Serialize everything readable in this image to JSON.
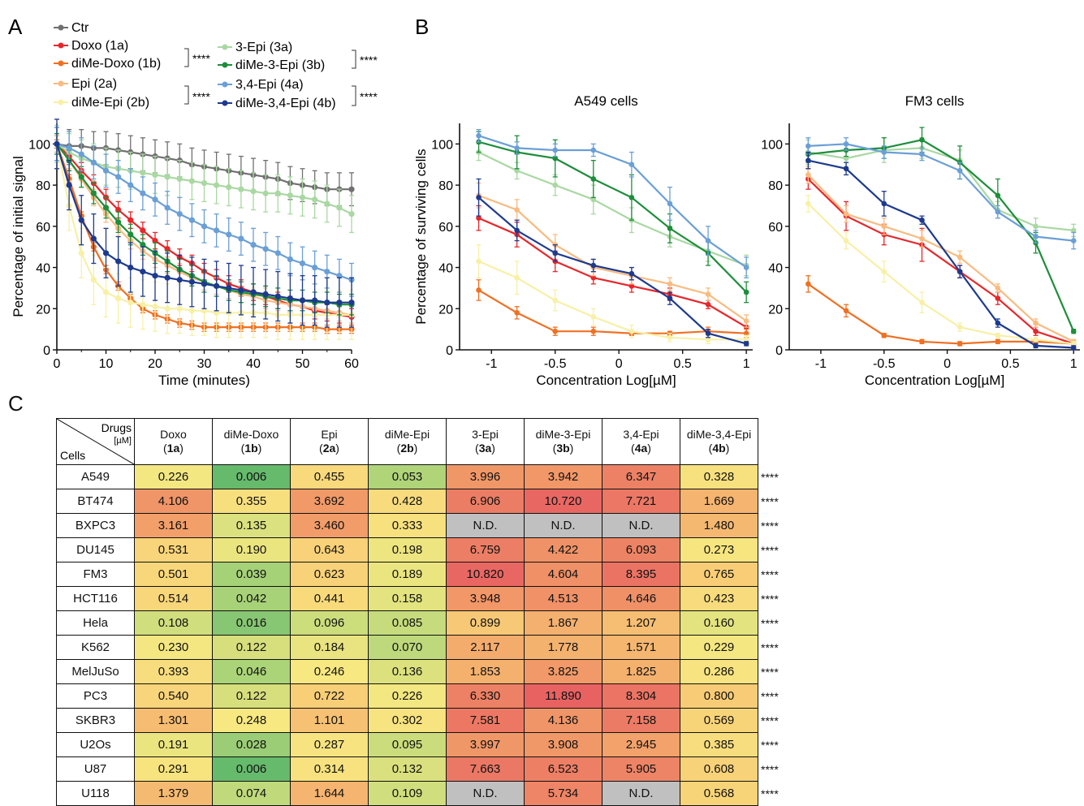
{
  "panels": {
    "a": "A",
    "b": "B",
    "c": "C"
  },
  "legend": {
    "items": [
      {
        "label": "Ctr",
        "color": "#707070"
      },
      {
        "label": "Doxo (1a)",
        "color": "#e8262b"
      },
      {
        "label": "diMe-Doxo (1b)",
        "color": "#f07022"
      },
      {
        "label": "Epi (2a)",
        "color": "#f9bb80"
      },
      {
        "label": "diMe-Epi (2b)",
        "color": "#f7f0a6"
      },
      {
        "label": "3-Epi (3a)",
        "color": "#a9d8a2"
      },
      {
        "label": "diMe-3-Epi (3b)",
        "color": "#1d8e3b"
      },
      {
        "label": "3,4-Epi (4a)",
        "color": "#6b9fd6"
      },
      {
        "label": "diMe-3,4-Epi (4b)",
        "color": "#1d3a8e"
      }
    ],
    "sig": "****"
  },
  "chart_data": [
    {
      "type": "line",
      "xlabel": "Time (minutes)",
      "ylabel": "Percentage of initial signal",
      "xlim": [
        0,
        60
      ],
      "ylim": [
        0,
        110
      ],
      "xticks": [
        "0",
        "10",
        "20",
        "30",
        "40",
        "50",
        "60"
      ],
      "yticks": [
        "0",
        "20",
        "40",
        "60",
        "80",
        "100"
      ],
      "x": [
        0,
        2.5,
        5,
        7.5,
        10,
        12.5,
        15,
        17.5,
        20,
        22.5,
        25,
        27.5,
        30,
        32.5,
        35,
        37.5,
        40,
        42.5,
        45,
        47.5,
        50,
        52.5,
        55,
        57.5,
        60
      ],
      "series": [
        {
          "name": "Ctr",
          "color": "#707070",
          "err": 8,
          "values": [
            100,
            99,
            99,
            98,
            98,
            97,
            96,
            95,
            94,
            93,
            92,
            90,
            89,
            88,
            87,
            86,
            85,
            84,
            83,
            81,
            80,
            79,
            78,
            78,
            78
          ]
        },
        {
          "name": "Doxo (1a)",
          "color": "#e8262b",
          "err": 4,
          "values": [
            100,
            94,
            87,
            81,
            74,
            68,
            63,
            58,
            53,
            49,
            45,
            42,
            38,
            35,
            32,
            30,
            28,
            26,
            24,
            22,
            21,
            19,
            18,
            17,
            16
          ]
        },
        {
          "name": "diMe-Doxo (1b)",
          "color": "#f07022",
          "err": 2,
          "values": [
            100,
            83,
            65,
            50,
            39,
            31,
            25,
            20,
            17,
            15,
            13,
            12,
            11,
            11,
            11,
            11,
            11,
            11,
            11,
            11,
            11,
            11,
            10,
            10,
            10
          ]
        },
        {
          "name": "Epi (2a)",
          "color": "#f9bb80",
          "err": 4,
          "values": [
            100,
            92,
            83,
            74,
            66,
            59,
            53,
            48,
            44,
            41,
            38,
            35,
            33,
            31,
            29,
            27,
            26,
            24,
            23,
            22,
            21,
            20,
            19,
            18,
            17
          ]
        },
        {
          "name": "diMe-Epi (2b)",
          "color": "#f7f0a6",
          "err": 12,
          "values": [
            100,
            70,
            47,
            34,
            28,
            25,
            23,
            22,
            21,
            20,
            20,
            19,
            19,
            18,
            18,
            18,
            18,
            18,
            17,
            17,
            17,
            17,
            17,
            17,
            17
          ]
        },
        {
          "name": "3-Epi (3a)",
          "color": "#a9d8a2",
          "err": 9,
          "values": [
            100,
            96,
            93,
            91,
            89,
            88,
            87,
            86,
            85,
            84,
            83,
            82,
            81,
            80,
            79,
            78,
            77,
            76,
            76,
            75,
            74,
            73,
            71,
            69,
            66
          ]
        },
        {
          "name": "diMe-3-Epi (3b)",
          "color": "#1d8e3b",
          "err": 5,
          "values": [
            100,
            92,
            84,
            76,
            69,
            62,
            56,
            51,
            47,
            43,
            39,
            36,
            33,
            31,
            29,
            28,
            27,
            26,
            25,
            24,
            24,
            23,
            23,
            22,
            22
          ]
        },
        {
          "name": "3,4-Epi (4a)",
          "color": "#6b9fd6",
          "err": 8,
          "values": [
            100,
            98,
            95,
            91,
            87,
            84,
            80,
            76,
            73,
            69,
            66,
            63,
            60,
            58,
            56,
            54,
            51,
            49,
            47,
            44,
            42,
            40,
            38,
            36,
            34
          ]
        },
        {
          "name": "diMe-3,4-Epi (4b)",
          "color": "#1d3a8e",
          "err": 12,
          "values": [
            100,
            80,
            63,
            54,
            47,
            43,
            40,
            38,
            36,
            35,
            34,
            33,
            32,
            31,
            30,
            29,
            28,
            27,
            26,
            25,
            24,
            24,
            23,
            23,
            23
          ]
        }
      ]
    },
    {
      "type": "line",
      "title": "A549 cells",
      "xlabel": "Concentration Log[µM]",
      "ylabel": "Percentage of surviving cells",
      "xlim": [
        -1.25,
        1.05
      ],
      "ylim": [
        0,
        110
      ],
      "xticks": [
        "-1",
        "-0.5",
        "0",
        "0.5",
        "1"
      ],
      "yticks": [
        "0",
        "20",
        "40",
        "60",
        "80",
        "100"
      ],
      "x": [
        -1.1,
        -0.8,
        -0.5,
        -0.2,
        0.1,
        0.4,
        0.7,
        1.0
      ],
      "series": [
        {
          "name": "Doxo (1a)",
          "color": "#e8262b",
          "values": [
            64,
            56,
            43,
            35,
            31,
            27,
            22,
            11
          ],
          "err": [
            6,
            6,
            5,
            3,
            3,
            3,
            2,
            3
          ]
        },
        {
          "name": "diMe-Doxo (1b)",
          "color": "#f07022",
          "values": [
            29,
            18,
            9,
            9,
            8,
            8,
            9,
            8
          ],
          "err": [
            5,
            3,
            2,
            2,
            1,
            1,
            2,
            2
          ]
        },
        {
          "name": "Epi (2a)",
          "color": "#f9bb80",
          "values": [
            75,
            68,
            51,
            40,
            36,
            32,
            27,
            14
          ],
          "err": [
            6,
            5,
            5,
            4,
            4,
            3,
            3,
            3
          ]
        },
        {
          "name": "diMe-Epi (2b)",
          "color": "#f7f0a6",
          "values": [
            43,
            35,
            24,
            16,
            9,
            6,
            5,
            5
          ],
          "err": [
            8,
            8,
            5,
            4,
            3,
            2,
            2,
            2
          ]
        },
        {
          "name": "3-Epi (3a)",
          "color": "#a9d8a2",
          "values": [
            96,
            87,
            80,
            73,
            63,
            55,
            48,
            41
          ],
          "err": [
            4,
            4,
            5,
            7,
            6,
            5,
            5,
            5
          ]
        },
        {
          "name": "diMe-3-Epi (3b)",
          "color": "#1d8e3b",
          "values": [
            101,
            96,
            93,
            83,
            74,
            59,
            47,
            28
          ],
          "err": [
            5,
            8,
            9,
            9,
            11,
            7,
            6,
            5
          ]
        },
        {
          "name": "3,4-Epi (4a)",
          "color": "#6b9fd6",
          "values": [
            104,
            98,
            97,
            97,
            90,
            71,
            53,
            40
          ],
          "err": [
            3,
            3,
            3,
            3,
            6,
            8,
            7,
            5
          ]
        },
        {
          "name": "diMe-3,4-Epi (4b)",
          "color": "#1d3a8e",
          "values": [
            74,
            58,
            47,
            41,
            37,
            25,
            8,
            3
          ],
          "err": [
            9,
            5,
            4,
            3,
            3,
            3,
            2,
            1
          ]
        }
      ]
    },
    {
      "type": "line",
      "title": "FM3 cells",
      "xlabel": "Concentration Log[µM]",
      "ylabel": "",
      "xlim": [
        -1.25,
        1.05
      ],
      "ylim": [
        0,
        110
      ],
      "xticks": [
        "-1",
        "-0.5",
        "0",
        "0.5",
        "1"
      ],
      "yticks": [
        "0",
        "20",
        "40",
        "60",
        "80",
        "100"
      ],
      "x": [
        -1.1,
        -0.8,
        -0.5,
        -0.2,
        0.1,
        0.4,
        0.7,
        1.0
      ],
      "series": [
        {
          "name": "Doxo (1a)",
          "color": "#e8262b",
          "values": [
            83,
            65,
            56,
            51,
            38,
            25,
            9,
            3
          ],
          "err": [
            5,
            7,
            5,
            8,
            3,
            3,
            2,
            1
          ]
        },
        {
          "name": "diMe-Doxo (1b)",
          "color": "#f07022",
          "values": [
            32,
            19,
            7,
            4,
            3,
            4,
            4,
            3
          ],
          "err": [
            4,
            3,
            1,
            1,
            1,
            1,
            1,
            1
          ]
        },
        {
          "name": "Epi (2a)",
          "color": "#f9bb80",
          "values": [
            85,
            66,
            60,
            54,
            45,
            30,
            13,
            4
          ],
          "err": [
            4,
            4,
            4,
            4,
            3,
            2,
            2,
            1
          ]
        },
        {
          "name": "diMe-Epi (2b)",
          "color": "#f7f0a6",
          "values": [
            71,
            53,
            38,
            23,
            11,
            7,
            5,
            3
          ],
          "err": [
            4,
            4,
            5,
            5,
            2,
            1,
            1,
            1
          ]
        },
        {
          "name": "3-Epi (3a)",
          "color": "#a9d8a2",
          "values": [
            96,
            93,
            97,
            98,
            92,
            68,
            60,
            58
          ],
          "err": [
            6,
            4,
            6,
            5,
            5,
            4,
            4,
            3
          ]
        },
        {
          "name": "diMe-3-Epi (3b)",
          "color": "#1d8e3b",
          "values": [
            95,
            97,
            98,
            102,
            91,
            75,
            52,
            9
          ],
          "err": [
            4,
            3,
            5,
            6,
            8,
            8,
            5,
            1
          ]
        },
        {
          "name": "3,4-Epi (4a)",
          "color": "#6b9fd6",
          "values": [
            99,
            100,
            96,
            95,
            87,
            67,
            55,
            53
          ],
          "err": [
            4,
            3,
            3,
            3,
            4,
            3,
            3,
            4
          ]
        },
        {
          "name": "diMe-3,4-Epi (4b)",
          "color": "#1d3a8e",
          "values": [
            92,
            88,
            71,
            63,
            38,
            13,
            2,
            1
          ],
          "err": [
            4,
            3,
            6,
            2,
            3,
            2,
            1,
            1
          ]
        }
      ]
    },
    {
      "type": "heatmap",
      "corner": {
        "drugs": "Drugs",
        "unit": "[µM]",
        "cells": "Cells"
      },
      "columns": [
        {
          "name": "Doxo",
          "code": "1a"
        },
        {
          "name": "diMe-Doxo",
          "code": "1b"
        },
        {
          "name": "Epi",
          "code": "2a"
        },
        {
          "name": "diMe-Epi",
          "code": "2b"
        },
        {
          "name": "3-Epi",
          "code": "3a"
        },
        {
          "name": "diMe-3-Epi",
          "code": "3b"
        },
        {
          "name": "3,4-Epi",
          "code": "4a"
        },
        {
          "name": "diMe-3,4-Epi",
          "code": "4b"
        }
      ],
      "rows": [
        {
          "cell": "A549",
          "values": [
            "0.226",
            "0.006",
            "0.455",
            "0.053",
            "3.996",
            "3.942",
            "6.347",
            "0.328"
          ],
          "sig": "****"
        },
        {
          "cell": "BT474",
          "values": [
            "4.106",
            "0.355",
            "3.692",
            "0.428",
            "6.906",
            "10.720",
            "7.721",
            "1.669"
          ],
          "sig": "****"
        },
        {
          "cell": "BXPC3",
          "values": [
            "3.161",
            "0.135",
            "3.460",
            "0.333",
            "N.D.",
            "N.D.",
            "N.D.",
            "1.480"
          ],
          "sig": "****"
        },
        {
          "cell": "DU145",
          "values": [
            "0.531",
            "0.190",
            "0.643",
            "0.198",
            "6.759",
            "4.422",
            "6.093",
            "0.273"
          ],
          "sig": "****"
        },
        {
          "cell": "FM3",
          "values": [
            "0.501",
            "0.039",
            "0.623",
            "0.189",
            "10.820",
            "4.604",
            "8.395",
            "0.765"
          ],
          "sig": "****"
        },
        {
          "cell": "HCT116",
          "values": [
            "0.514",
            "0.042",
            "0.441",
            "0.158",
            "3.948",
            "4.513",
            "4.646",
            "0.423"
          ],
          "sig": "****"
        },
        {
          "cell": "Hela",
          "values": [
            "0.108",
            "0.016",
            "0.096",
            "0.085",
            "0.899",
            "1.867",
            "1.207",
            "0.160"
          ],
          "sig": "****"
        },
        {
          "cell": "K562",
          "values": [
            "0.230",
            "0.122",
            "0.184",
            "0.070",
            "2.117",
            "1.778",
            "1.571",
            "0.229"
          ],
          "sig": "****"
        },
        {
          "cell": "MelJuSo",
          "values": [
            "0.393",
            "0.046",
            "0.246",
            "0.136",
            "1.853",
            "3.825",
            "1.825",
            "0.286"
          ],
          "sig": "****"
        },
        {
          "cell": "PC3",
          "values": [
            "0.540",
            "0.122",
            "0.722",
            "0.226",
            "6.330",
            "11.890",
            "8.304",
            "0.800"
          ],
          "sig": "****"
        },
        {
          "cell": "SKBR3",
          "values": [
            "1.301",
            "0.248",
            "1.101",
            "0.302",
            "7.581",
            "4.136",
            "7.158",
            "0.569"
          ],
          "sig": "****"
        },
        {
          "cell": "U2Os",
          "values": [
            "0.191",
            "0.028",
            "0.287",
            "0.095",
            "3.997",
            "3.908",
            "2.945",
            "0.385"
          ],
          "sig": "****"
        },
        {
          "cell": "U87",
          "values": [
            "0.291",
            "0.006",
            "0.314",
            "0.132",
            "7.663",
            "6.523",
            "5.905",
            "0.608"
          ],
          "sig": "****"
        },
        {
          "cell": "U118",
          "values": [
            "1.379",
            "0.074",
            "1.644",
            "0.109",
            "N.D.",
            "5.734",
            "N.D.",
            "0.568"
          ],
          "sig": "****"
        }
      ],
      "nd_color": "#c0c0c0"
    }
  ]
}
